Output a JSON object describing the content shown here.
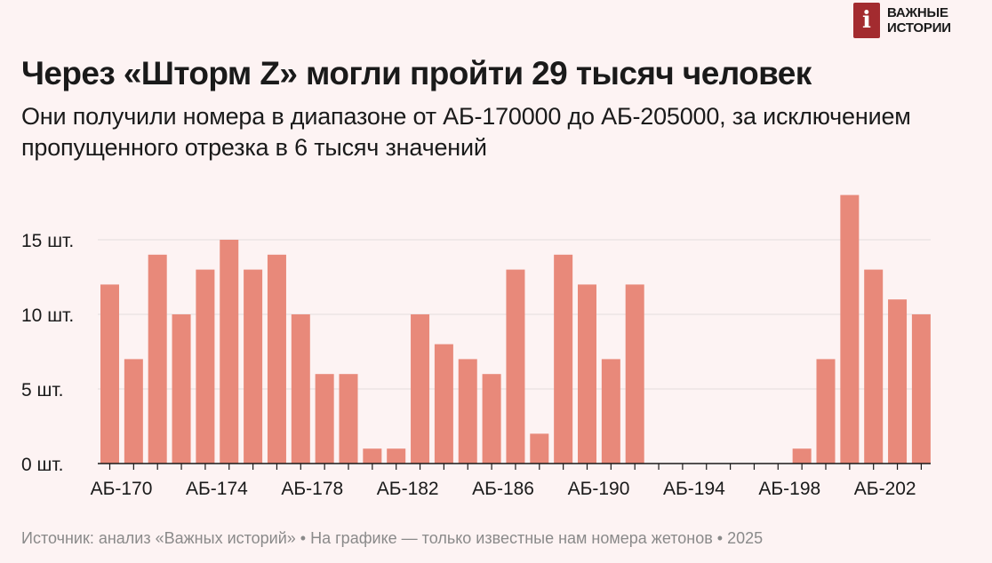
{
  "logo": {
    "line1": "ВАЖНЫЕ",
    "line2": "ИСТОРИИ",
    "mark": "i",
    "color": "#a32b2f"
  },
  "title": "Через «Шторм Z» могли пройти 29 тысяч человек",
  "subtitle": "Они получили номера в диапазоне от АБ-170000 до АБ-205000, за исключением пропущенного отрезка в 6 тысяч значений",
  "footer": "Источник: анализ «Важных историй» • На графике — только известные нам номера жетонов • 2025",
  "chart_data": {
    "type": "bar",
    "bar_color": "#e8897a",
    "categories": [
      "АБ-170",
      "АБ-171",
      "АБ-172",
      "АБ-173",
      "АБ-174",
      "АБ-175",
      "АБ-176",
      "АБ-177",
      "АБ-178",
      "АБ-179",
      "АБ-180",
      "АБ-181",
      "АБ-182",
      "АБ-183",
      "АБ-184",
      "АБ-185",
      "АБ-186",
      "АБ-187",
      "АБ-188",
      "АБ-189",
      "АБ-190",
      "АБ-191",
      "АБ-192",
      "АБ-193",
      "АБ-194",
      "АБ-195",
      "АБ-196",
      "АБ-197",
      "АБ-198",
      "АБ-199",
      "АБ-200",
      "АБ-201",
      "АБ-202",
      "АБ-203",
      "АБ-204"
    ],
    "values": [
      12,
      7,
      14,
      10,
      13,
      15,
      13,
      14,
      10,
      6,
      6,
      1,
      1,
      10,
      8,
      7,
      6,
      13,
      2,
      14,
      12,
      7,
      12,
      0,
      0,
      0,
      0,
      0,
      0,
      1,
      7,
      18,
      13,
      11,
      10
    ],
    "x_tick_labels": [
      {
        "index": 0,
        "label": "АБ-170"
      },
      {
        "index": 4,
        "label": "АБ-174"
      },
      {
        "index": 8,
        "label": "АБ-178"
      },
      {
        "index": 12,
        "label": "АБ-182"
      },
      {
        "index": 16,
        "label": "АБ-186"
      },
      {
        "index": 20,
        "label": "АБ-190"
      },
      {
        "index": 24,
        "label": "АБ-194"
      },
      {
        "index": 28,
        "label": "АБ-198"
      },
      {
        "index": 32,
        "label": "АБ-202"
      }
    ],
    "y_ticks": [
      {
        "value": 0,
        "label": "0 шт."
      },
      {
        "value": 5,
        "label": "5 шт."
      },
      {
        "value": 10,
        "label": "10 шт."
      },
      {
        "value": 15,
        "label": "15 шт."
      }
    ],
    "ylim": [
      0,
      18
    ],
    "grid": true,
    "xlabel": "",
    "ylabel": ""
  }
}
